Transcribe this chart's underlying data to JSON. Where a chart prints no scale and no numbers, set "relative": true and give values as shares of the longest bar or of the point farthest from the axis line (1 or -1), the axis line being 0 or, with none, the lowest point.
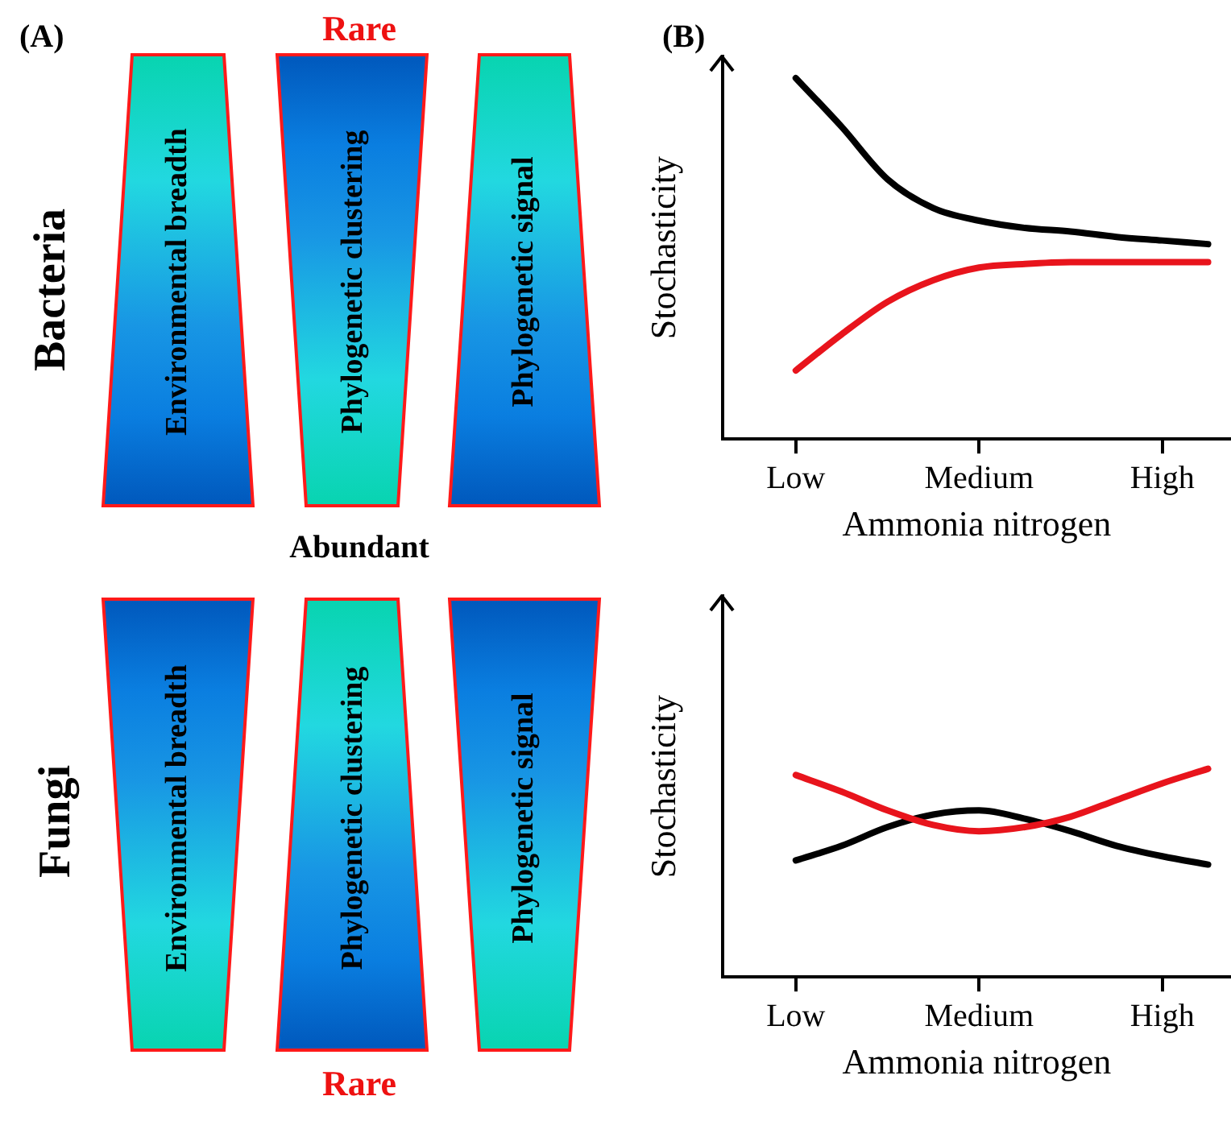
{
  "chart_data": [
    {
      "type": "other",
      "title": "(A)",
      "annotations": [
        "Rare",
        "Bacteria",
        "Environmental breadth",
        "Phylogenetic clustering",
        "Phylogenetic signal",
        "Abundant",
        "Fungi",
        "Environmental breadth",
        "Phylogenetic clustering",
        "Phylogenetic signal",
        "Rare"
      ]
    },
    {
      "type": "line",
      "title": "(B)",
      "xlabel": "Ammonia nitrogen",
      "ylabel": "Stochasticity",
      "relative": true,
      "categories": [
        "Low",
        null,
        null,
        null,
        "Medium",
        null,
        null,
        null,
        "High",
        null
      ],
      "series": [
        {
          "color": "#000000",
          "values": [
            1,
            0.865,
            0.72,
            0.64,
            0.605,
            0.585,
            0.575,
            0.56,
            0.55,
            0.54
          ]
        },
        {
          "color": "#e8141c",
          "values": [
            0.19,
            0.29,
            0.38,
            0.44,
            0.475,
            0.485,
            0.49,
            0.49,
            0.49,
            0.49
          ]
        }
      ]
    },
    {
      "type": "line",
      "xlabel": "Ammonia nitrogen",
      "ylabel": "Stochasticity",
      "relative": true,
      "categories": [
        "Low",
        null,
        null,
        null,
        "Medium",
        null,
        null,
        null,
        "High",
        null
      ],
      "series": [
        {
          "color": "#e8141c",
          "values": [
            0.97,
            0.89,
            0.8,
            0.73,
            0.7,
            0.72,
            0.77,
            0.85,
            0.93,
            1
          ]
        },
        {
          "color": "#000000",
          "values": [
            0.56,
            0.63,
            0.72,
            0.78,
            0.8,
            0.76,
            0.7,
            0.63,
            0.58,
            0.54
          ]
        }
      ]
    }
  ]
}
